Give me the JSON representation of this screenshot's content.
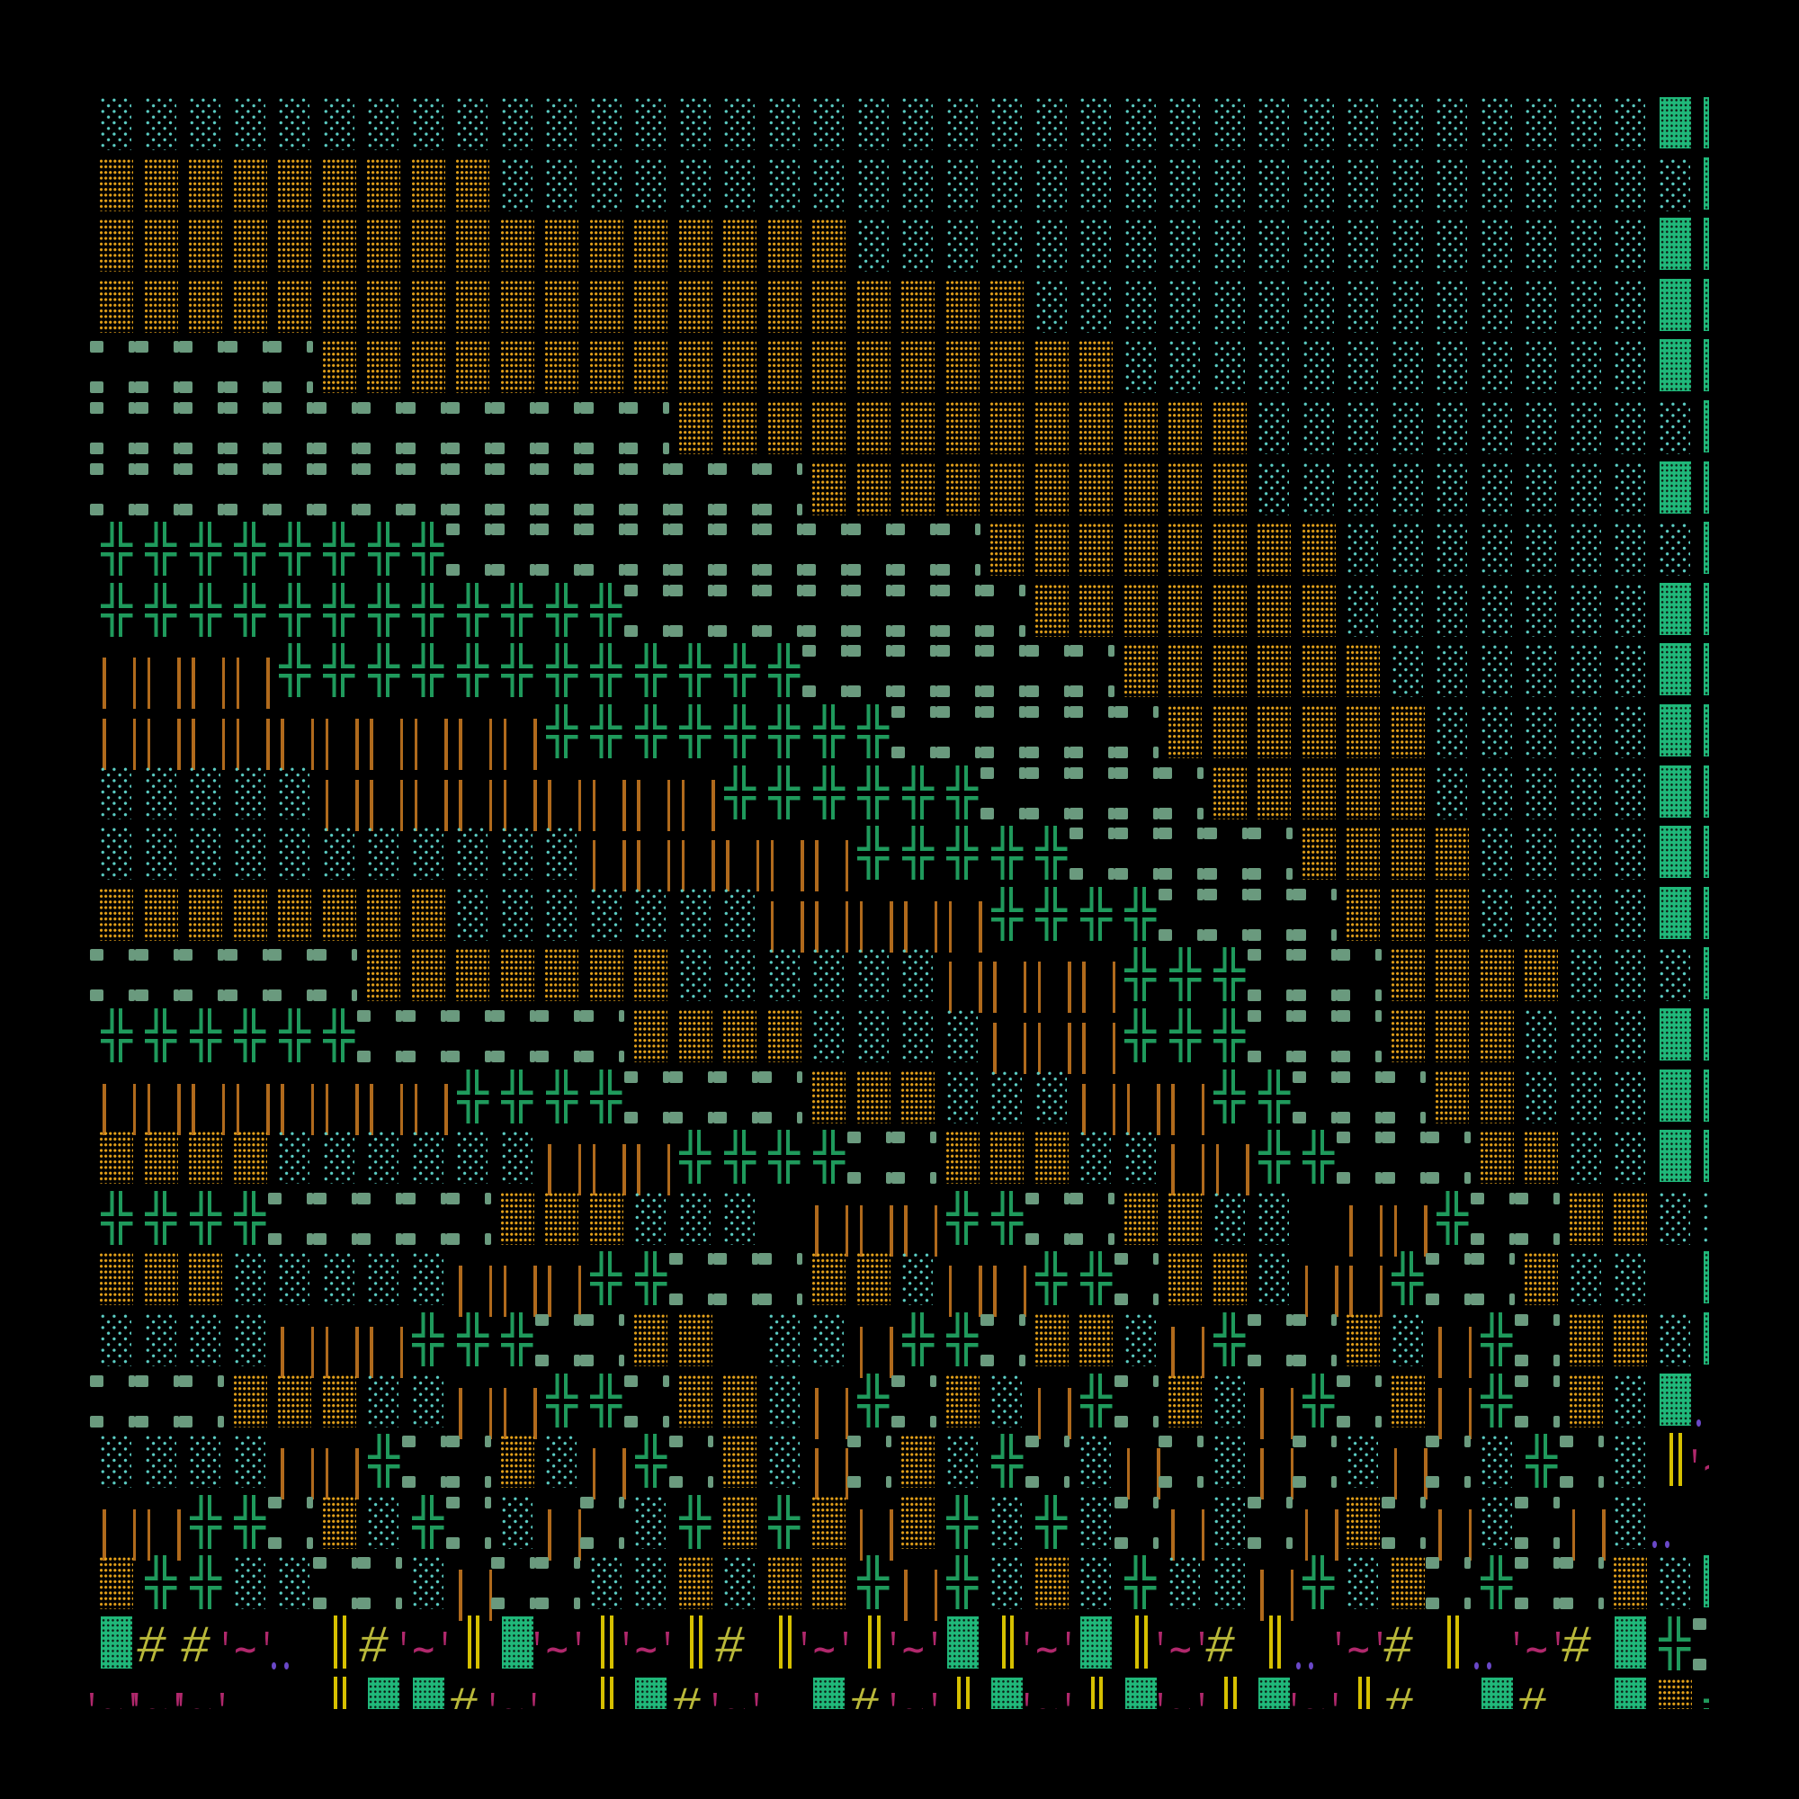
{
  "grid": {
    "rows": [
      "cccccccccccccccccccccccccccccccccccgg",
      "ooooooooocccccccccccccccccccccccccccgg",
      "oooooooooooooooooccccccccccccccccccgg",
      "oooooooooooooooooooooccccccccccccccgg",
      "sssssooooooooooooooooooccccccccccccgg",
      "sssssssssssssoooooooooooooccccccccccgg",
      "ssssssssssssssssooooooooooccccccccc gg",
      "ppppppppssssssssssssooooooooccccccccgg",
      "ppppppppppppsssssssssoooooooccccccc gg",
      "bbbbppppppppppppsssssssooooooccccccgg",
      "bbbbbbbbbbppppppppssssssoooooocccccgg",
      "cccccbbbbbbbbbppppppsssssooooocccccgg",
      "cccccccccccbbbbbbpppppsssssooooccccgg",
      "oooooooocccccccbbbbbppppssssooocccc gg",
      "ssssssoooooooccccccbbbbpppsssoooo cccgg",
      "ppppppssssssoooocccc bbbpppsssooocccgg",
      "bbbbbbbbppppssssooocccbbbppsssoocccgg",
      "oooocccccc bbbppppssooocc bbppsssoocc gg",
      "ppppsssssoooccc bbbppssoocc bbpssoocc g",
      "ooocccccbbbppsssoocbbppsoocbbpssocc g",
      "ccccbbbpppssoo ccbppsoocbpssocbpsoocg",
      "sssoooccbbppsoocbpsocbpsocbpsobpsocgv",
      "ccccbbpssocbpsocbsocpscbscbscbscpscym",
      "bbppsocpscbscpopobopcpcsbcsbosbcsbcv ",
      "oppccsscbssccocoopbpcocpccbpcospssocg ",
      "g##mvy#mygmymy#ymymgymgym#yvm#yvm#gps",
      "mmm  ygg#m yg#m g#mygmygmygmy# g# gop"
    ]
  },
  "tiles": {
    "c": {
      "name": "cyan-dot-tile",
      "color": "#5ccfc6"
    },
    "o": {
      "name": "orange-dot-tile",
      "color": "#e6a21a"
    },
    "s": {
      "name": "sage-dash-tile",
      "color": "#6a9a7e"
    },
    "p": {
      "name": "green-double-cross-tile",
      "color": "#1f9a5c"
    },
    "b": {
      "name": "brown-bar-tile",
      "color": "#b06a1c"
    },
    "g": {
      "name": "green-block-tile",
      "color": "#20b87a"
    },
    "#": {
      "name": "hash-glyph",
      "text": "#",
      "color": "#b9b83a"
    },
    "y": {
      "name": "yellow-double-bar-tile",
      "color": "#d6c000"
    },
    "m": {
      "name": "magenta-tilde-glyph",
      "text": "~",
      "color": "#b0286c"
    },
    "v": {
      "name": "purple-dots-tile",
      "color": "#6a48c8"
    }
  }
}
